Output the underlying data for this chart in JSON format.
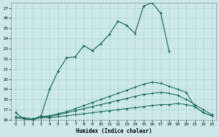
{
  "xlabel": "Humidex (Indice chaleur)",
  "background_color": "#cce8e8",
  "line_color": "#1a6b5e",
  "grid_color": "#aad4d0",
  "xlim": [
    -0.5,
    23.5
  ],
  "ylim": [
    16,
    27.5
  ],
  "yticks": [
    16,
    17,
    18,
    19,
    20,
    21,
    22,
    23,
    24,
    25,
    26,
    27
  ],
  "xticks": [
    0,
    1,
    2,
    3,
    4,
    5,
    6,
    7,
    8,
    9,
    10,
    11,
    12,
    13,
    14,
    15,
    16,
    17,
    18,
    19,
    20,
    21,
    22,
    23
  ],
  "series_main_x": [
    0,
    1,
    2,
    3,
    4,
    5,
    6,
    7,
    8,
    9,
    10,
    11,
    12,
    13,
    14,
    15,
    16,
    17,
    18,
    19,
    20,
    21,
    22
  ],
  "series_main_y": [
    16.7,
    16.1,
    16.0,
    16.4,
    19.0,
    20.8,
    22.1,
    22.2,
    23.3,
    22.8,
    23.5,
    24.4,
    25.7,
    25.3,
    24.5,
    27.2,
    27.5,
    26.5,
    22.7,
    null,
    null,
    null,
    null
  ],
  "series2_x": [
    0,
    1,
    2,
    3,
    4,
    5,
    6,
    7,
    8,
    9,
    10,
    11,
    12,
    13,
    14,
    15,
    16,
    17,
    18,
    19,
    20,
    21,
    22,
    23
  ],
  "series2_y": [
    16.2,
    16.1,
    16.0,
    16.2,
    16.2,
    16.3,
    16.4,
    16.5,
    16.6,
    16.7,
    16.8,
    16.9,
    17.0,
    17.1,
    17.2,
    17.3,
    17.4,
    17.5,
    17.5,
    17.6,
    17.5,
    17.3,
    16.7,
    16.4
  ],
  "series3_x": [
    0,
    1,
    2,
    3,
    4,
    5,
    6,
    7,
    8,
    9,
    10,
    11,
    12,
    13,
    14,
    15,
    16,
    17,
    18,
    19,
    20,
    21,
    22,
    23
  ],
  "series3_y": [
    16.3,
    16.2,
    16.1,
    16.3,
    16.3,
    16.5,
    16.7,
    16.9,
    17.1,
    17.3,
    17.5,
    17.7,
    17.9,
    18.1,
    18.3,
    18.5,
    18.6,
    18.7,
    18.6,
    18.4,
    18.0,
    17.5,
    17.0,
    16.5
  ],
  "series4_x": [
    3,
    4,
    5,
    6,
    7,
    8,
    9,
    10,
    11,
    12,
    13,
    14,
    15,
    16,
    17,
    18,
    19,
    20,
    21,
    22,
    23
  ],
  "series4_y": [
    16.3,
    16.4,
    16.6,
    16.8,
    17.1,
    17.4,
    17.7,
    18.0,
    18.3,
    18.6,
    18.9,
    19.2,
    19.5,
    19.7,
    19.6,
    19.3,
    19.0,
    18.7,
    17.3,
    16.7,
    16.4
  ]
}
